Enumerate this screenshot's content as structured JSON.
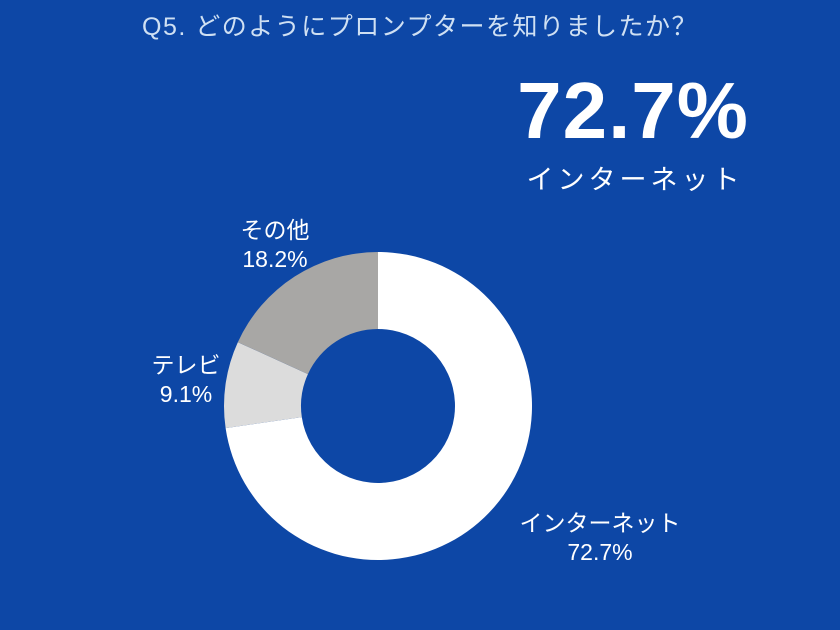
{
  "page": {
    "background_color": "#0d47a6",
    "title_color": "#cfe0f3",
    "text_color": "#ffffff"
  },
  "title": "Q5. どのようにプロンプターを知りましたか？",
  "highlight": {
    "value": "72.7%",
    "label": "インターネット"
  },
  "chart_data": {
    "type": "pie",
    "subtype": "donut",
    "title": "Q5. どのようにプロンプターを知りましたか？",
    "unit": "%",
    "start_angle_deg": 0,
    "direction": "clockwise",
    "inner_radius_ratio": 0.5,
    "legend_position": "none",
    "segments": [
      {
        "key": "internet",
        "label": "インターネット",
        "value": 72.7,
        "percent_label": "72.7%",
        "color": "#ffffff"
      },
      {
        "key": "tv",
        "label": "テレビ",
        "value": 9.1,
        "percent_label": "9.1%",
        "color": "#dcdcdc"
      },
      {
        "key": "other",
        "label": "その他",
        "value": 18.2,
        "percent_label": "18.2%",
        "color": "#a8a7a5"
      }
    ]
  }
}
